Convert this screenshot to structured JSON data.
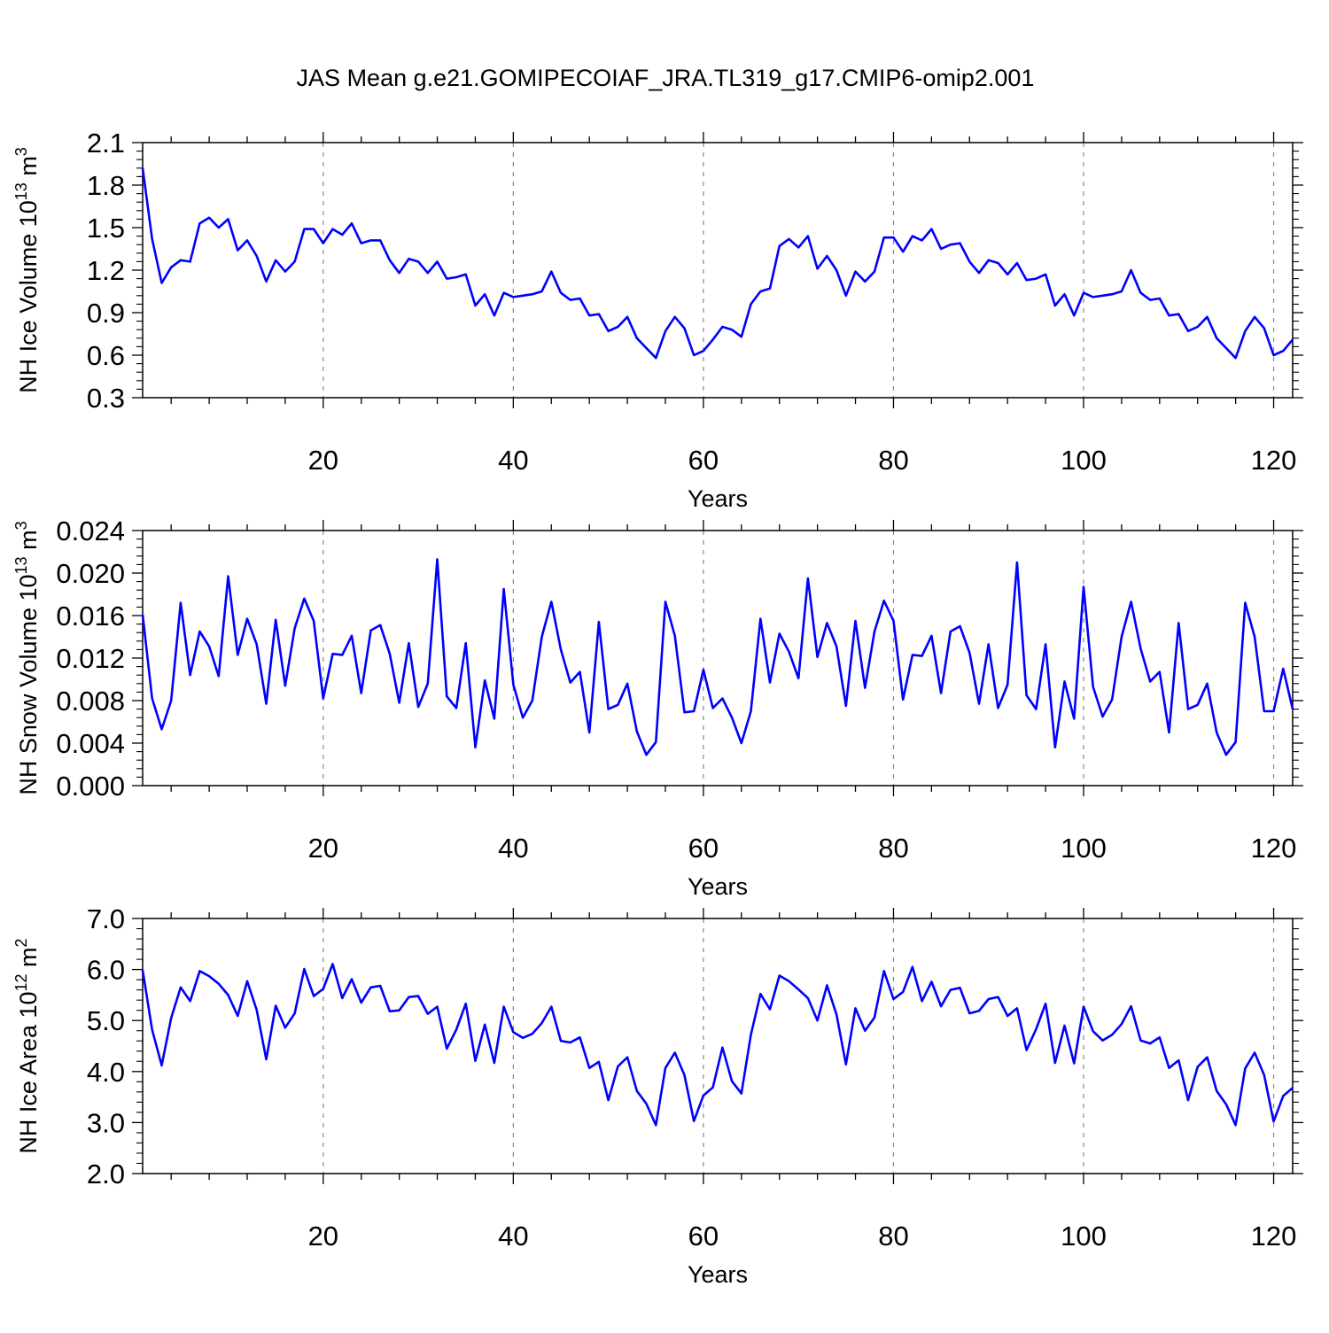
{
  "title": "JAS Mean g.e21.GOMIPECOIAF_JRA.TL319_g17.CMIP6-omip2.001",
  "colors": {
    "series": "#0000ff",
    "axis": "#000000",
    "grid": "#888888"
  },
  "chart_data": [
    {
      "type": "line",
      "xlabel": "Years",
      "ylabel_main": "NH Ice Volume 10",
      "ylabel_sup1": "13",
      "ylabel_mid": " m",
      "ylabel_sup2": "3",
      "xlim": [
        1,
        122
      ],
      "ylim": [
        0.3,
        2.1
      ],
      "yticks": [
        "0.3",
        "0.6",
        "0.9",
        "1.2",
        "1.5",
        "1.8",
        "2.1"
      ],
      "xticks": [
        "20",
        "40",
        "60",
        "80",
        "100",
        "120"
      ],
      "grid": "vertical dashed",
      "x_start": 1,
      "values": [
        1.92,
        1.42,
        1.11,
        1.22,
        1.27,
        1.26,
        1.53,
        1.57,
        1.5,
        1.56,
        1.34,
        1.41,
        1.3,
        1.12,
        1.27,
        1.19,
        1.26,
        1.49,
        1.49,
        1.39,
        1.49,
        1.45,
        1.53,
        1.39,
        1.41,
        1.41,
        1.27,
        1.18,
        1.28,
        1.26,
        1.18,
        1.26,
        1.14,
        1.15,
        1.17,
        0.95,
        1.03,
        0.88,
        1.04,
        1.01,
        1.02,
        1.03,
        1.05,
        1.19,
        1.04,
        0.99,
        1.0,
        0.88,
        0.89,
        0.77,
        0.8,
        0.87,
        0.72,
        0.65,
        0.58,
        0.77,
        0.87,
        0.79,
        0.6,
        0.63,
        0.71,
        0.8,
        0.78,
        0.73,
        0.96,
        1.05,
        1.07,
        1.37,
        1.42,
        1.36,
        1.44,
        1.21,
        1.3,
        1.2,
        1.02,
        1.19,
        1.12,
        1.19,
        1.43,
        1.43,
        1.33,
        1.44,
        1.41,
        1.49,
        1.35,
        1.38,
        1.39,
        1.26,
        1.18,
        1.27,
        1.25,
        1.17,
        1.25,
        1.13,
        1.14,
        1.17,
        0.95,
        1.03,
        0.88,
        1.04,
        1.01,
        1.02,
        1.03,
        1.05,
        1.2,
        1.04,
        0.99,
        1.0,
        0.88,
        0.89,
        0.77,
        0.8,
        0.87,
        0.72,
        0.65,
        0.58,
        0.77,
        0.87,
        0.79,
        0.6,
        0.63,
        0.71
      ]
    },
    {
      "type": "line",
      "xlabel": "Years",
      "ylabel_main": "NH Snow Volume 10",
      "ylabel_sup1": "13",
      "ylabel_mid": " m",
      "ylabel_sup2": "3",
      "xlim": [
        1,
        122
      ],
      "ylim": [
        0.0,
        0.024
      ],
      "yticks": [
        "0.000",
        "0.004",
        "0.008",
        "0.012",
        "0.016",
        "0.020",
        "0.024"
      ],
      "xticks": [
        "20",
        "40",
        "60",
        "80",
        "100",
        "120"
      ],
      "grid": "vertical dashed",
      "x_start": 1,
      "values": [
        0.0161,
        0.0082,
        0.0053,
        0.008,
        0.0172,
        0.0104,
        0.0145,
        0.0131,
        0.0103,
        0.0197,
        0.0123,
        0.0157,
        0.0133,
        0.0077,
        0.0156,
        0.0094,
        0.0148,
        0.0176,
        0.0155,
        0.0082,
        0.0124,
        0.0123,
        0.0141,
        0.0087,
        0.0146,
        0.0151,
        0.0124,
        0.0078,
        0.0134,
        0.0074,
        0.0096,
        0.0213,
        0.0084,
        0.0073,
        0.0134,
        0.0036,
        0.0099,
        0.0063,
        0.0185,
        0.0095,
        0.0064,
        0.008,
        0.014,
        0.0173,
        0.0128,
        0.0097,
        0.0107,
        0.005,
        0.0154,
        0.0072,
        0.0076,
        0.0096,
        0.0051,
        0.0029,
        0.0041,
        0.0173,
        0.0141,
        0.0069,
        0.007,
        0.0109,
        0.0073,
        0.0082,
        0.0064,
        0.004,
        0.007,
        0.0157,
        0.0097,
        0.0143,
        0.0126,
        0.0101,
        0.0195,
        0.0121,
        0.0153,
        0.0131,
        0.0075,
        0.0155,
        0.0092,
        0.0145,
        0.0174,
        0.0155,
        0.0081,
        0.0123,
        0.0122,
        0.0141,
        0.0087,
        0.0145,
        0.015,
        0.0125,
        0.0077,
        0.0133,
        0.0073,
        0.0095,
        0.021,
        0.0085,
        0.0072,
        0.0133,
        0.0036,
        0.0098,
        0.0063,
        0.0187,
        0.0093,
        0.0065,
        0.0081,
        0.014,
        0.0173,
        0.0129,
        0.0098,
        0.0107,
        0.005,
        0.0153,
        0.0072,
        0.0076,
        0.0096,
        0.005,
        0.0029,
        0.0041,
        0.0172,
        0.014,
        0.007,
        0.007,
        0.011,
        0.0072
      ]
    },
    {
      "type": "line",
      "xlabel": "Years",
      "ylabel_main": "NH Ice Area 10",
      "ylabel_sup1": "12",
      "ylabel_mid": " m",
      "ylabel_sup2": "2",
      "xlim": [
        1,
        122
      ],
      "ylim": [
        2.0,
        7.0
      ],
      "yticks": [
        "2.0",
        "3.0",
        "4.0",
        "5.0",
        "6.0",
        "7.0"
      ],
      "xticks": [
        "20",
        "40",
        "60",
        "80",
        "100",
        "120"
      ],
      "grid": "vertical dashed",
      "x_start": 1,
      "values": [
        5.99,
        4.82,
        4.12,
        5.05,
        5.65,
        5.38,
        5.97,
        5.87,
        5.72,
        5.5,
        5.09,
        5.77,
        5.21,
        4.24,
        5.29,
        4.86,
        5.14,
        6.01,
        5.48,
        5.62,
        6.11,
        5.44,
        5.81,
        5.35,
        5.65,
        5.68,
        5.18,
        5.2,
        5.46,
        5.48,
        5.13,
        5.27,
        4.45,
        4.82,
        5.33,
        4.21,
        4.92,
        4.17,
        5.27,
        4.77,
        4.66,
        4.74,
        4.95,
        5.27,
        4.6,
        4.57,
        4.67,
        4.07,
        4.19,
        3.44,
        4.1,
        4.28,
        3.62,
        3.37,
        2.95,
        4.07,
        4.37,
        3.93,
        3.03,
        3.53,
        3.69,
        4.47,
        3.81,
        3.57,
        4.72,
        5.52,
        5.22,
        5.88,
        5.77,
        5.61,
        5.44,
        5.0,
        5.69,
        5.12,
        4.14,
        5.24,
        4.8,
        5.06,
        5.97,
        5.42,
        5.56,
        6.05,
        5.38,
        5.76,
        5.28,
        5.6,
        5.64,
        5.14,
        5.19,
        5.42,
        5.46,
        5.09,
        5.24,
        4.42,
        4.83,
        5.33,
        4.17,
        4.9,
        4.16,
        5.27,
        4.79,
        4.61,
        4.72,
        4.93,
        5.28,
        4.61,
        4.55,
        4.67,
        4.07,
        4.22,
        3.44,
        4.09,
        4.28,
        3.62,
        3.36,
        2.95,
        4.06,
        4.37,
        3.93,
        3.02,
        3.52,
        3.68
      ]
    }
  ]
}
